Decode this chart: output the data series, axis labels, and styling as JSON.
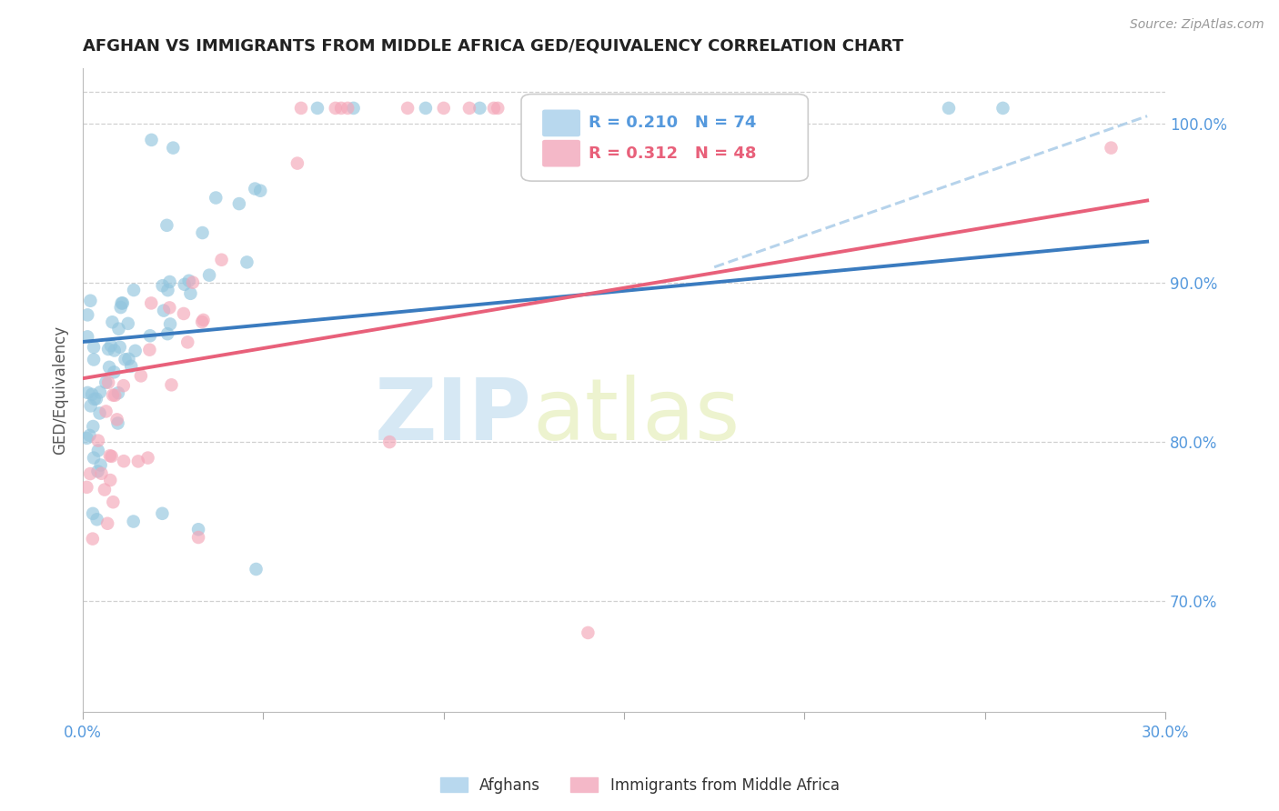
{
  "title": "AFGHAN VS IMMIGRANTS FROM MIDDLE AFRICA GED/EQUIVALENCY CORRELATION CHART",
  "source": "Source: ZipAtlas.com",
  "xlim": [
    0.0,
    0.3
  ],
  "ylim": [
    0.63,
    1.035
  ],
  "ylabel": "GED/Equivalency",
  "legend_labels": [
    "Afghans",
    "Immigrants from Middle Africa"
  ],
  "blue_color": "#92c5de",
  "pink_color": "#f4a6b8",
  "trendline_blue": "#3a7bbf",
  "trendline_pink": "#e8607a",
  "trendline_dashed_blue": "#aacce8",
  "R_blue": 0.21,
  "N_blue": 74,
  "R_pink": 0.312,
  "N_pink": 48,
  "watermark_zip": "ZIP",
  "watermark_atlas": "atlas",
  "background_color": "#ffffff",
  "grid_color": "#d0d0d0",
  "tick_color": "#5599dd",
  "title_color": "#222222",
  "ylabel_color": "#555555",
  "source_color": "#999999"
}
